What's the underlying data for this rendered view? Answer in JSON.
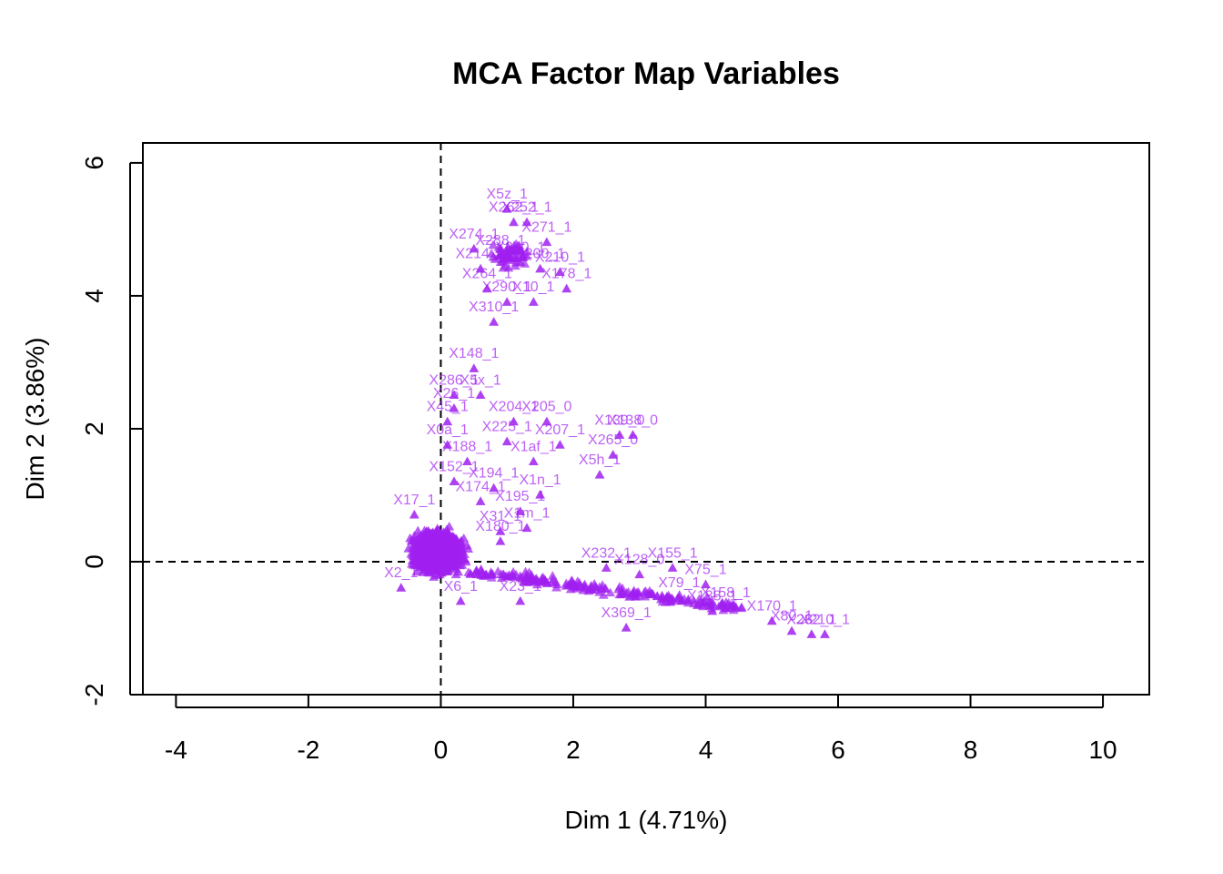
{
  "chart_data": {
    "type": "scatter",
    "title": "MCA Factor Map Variables",
    "xlabel": "Dim 1 (4.71%)",
    "ylabel": "Dim 2 (3.86%)",
    "xlim": [
      -4.5,
      10.7
    ],
    "ylim": [
      -2.0,
      6.3
    ],
    "xticks": [
      -4,
      -2,
      0,
      2,
      4,
      6,
      8,
      10
    ],
    "yticks": [
      -2,
      0,
      2,
      4,
      6
    ],
    "grid": false,
    "reference_lines": {
      "x": 0,
      "y": 0,
      "style": "dashed"
    },
    "marker": "triangle",
    "color": "#A020F0",
    "series": [
      {
        "points": [
          {
            "x": 1.0,
            "y": 5.3,
            "label": "X5z_1"
          },
          {
            "x": 1.3,
            "y": 5.1,
            "label": "X252_1"
          },
          {
            "x": 1.1,
            "y": 5.1,
            "label": "X262_1"
          },
          {
            "x": 0.5,
            "y": 4.7,
            "label": "X274_1"
          },
          {
            "x": 1.6,
            "y": 4.8,
            "label": "X271_1"
          },
          {
            "x": 0.9,
            "y": 4.6,
            "label": "X288_1"
          },
          {
            "x": 1.2,
            "y": 4.5,
            "label": "X240_1"
          },
          {
            "x": 1.5,
            "y": 4.4,
            "label": "X200_1"
          },
          {
            "x": 0.6,
            "y": 4.4,
            "label": "X214_1"
          },
          {
            "x": 1.8,
            "y": 4.35,
            "label": "X210_1"
          },
          {
            "x": 0.7,
            "y": 4.1,
            "label": "X264_1"
          },
          {
            "x": 1.9,
            "y": 4.1,
            "label": "X178_1"
          },
          {
            "x": 1.0,
            "y": 3.9,
            "label": "X290_1"
          },
          {
            "x": 1.4,
            "y": 3.9,
            "label": "X10_1"
          },
          {
            "x": 0.8,
            "y": 3.6,
            "label": "X310_1"
          },
          {
            "x": 0.5,
            "y": 2.9,
            "label": "X148_1"
          },
          {
            "x": 0.2,
            "y": 2.5,
            "label": "X286_1"
          },
          {
            "x": 0.6,
            "y": 2.5,
            "label": "X5x_1"
          },
          {
            "x": 0.2,
            "y": 2.3,
            "label": "X26_1"
          },
          {
            "x": 0.1,
            "y": 2.1,
            "label": "X45_1"
          },
          {
            "x": 1.1,
            "y": 2.1,
            "label": "X204_1"
          },
          {
            "x": 1.6,
            "y": 2.1,
            "label": "X205_0"
          },
          {
            "x": 2.7,
            "y": 1.9,
            "label": "X139_0"
          },
          {
            "x": 2.9,
            "y": 1.9,
            "label": "X138_0"
          },
          {
            "x": 0.1,
            "y": 1.75,
            "label": "X0a_1"
          },
          {
            "x": 1.0,
            "y": 1.8,
            "label": "X225_1"
          },
          {
            "x": 1.8,
            "y": 1.75,
            "label": "X207_1"
          },
          {
            "x": 2.6,
            "y": 1.6,
            "label": "X265_0"
          },
          {
            "x": 0.4,
            "y": 1.5,
            "label": "X188_1"
          },
          {
            "x": 1.4,
            "y": 1.5,
            "label": "X1af_1"
          },
          {
            "x": 2.4,
            "y": 1.3,
            "label": "X5h_1"
          },
          {
            "x": 0.2,
            "y": 1.2,
            "label": "X152_1"
          },
          {
            "x": 0.8,
            "y": 1.1,
            "label": "X194_1"
          },
          {
            "x": 1.5,
            "y": 1.0,
            "label": "X1n_1"
          },
          {
            "x": 0.6,
            "y": 0.9,
            "label": "X174_1"
          },
          {
            "x": 1.2,
            "y": 0.75,
            "label": "X195_1"
          },
          {
            "x": 1.3,
            "y": 0.5,
            "label": "X1m_1"
          },
          {
            "x": 0.9,
            "y": 0.3,
            "label": "X180_1"
          },
          {
            "x": 2.5,
            "y": -0.1,
            "label": "X232_1"
          },
          {
            "x": 3.5,
            "y": -0.1,
            "label": "X155_1"
          },
          {
            "x": 3.0,
            "y": -0.2,
            "label": "X128_0"
          },
          {
            "x": 4.0,
            "y": -0.35,
            "label": "X75_1"
          },
          {
            "x": 3.6,
            "y": -0.55,
            "label": "X79_1"
          },
          {
            "x": 4.3,
            "y": -0.7,
            "label": "X158_1"
          },
          {
            "x": 4.1,
            "y": -0.75,
            "label": "X138_1"
          },
          {
            "x": 5.0,
            "y": -0.9,
            "label": "X170_1"
          },
          {
            "x": 2.8,
            "y": -1.0,
            "label": "X369_1"
          },
          {
            "x": 5.3,
            "y": -1.05,
            "label": "X80_1"
          },
          {
            "x": 5.6,
            "y": -1.1,
            "label": "X282_1"
          },
          {
            "x": 5.8,
            "y": -1.1,
            "label": "X210_1"
          },
          {
            "x": -0.6,
            "y": -0.4,
            "label": "X2_1"
          },
          {
            "x": 0.3,
            "y": -0.6,
            "label": "X6_1"
          },
          {
            "x": 1.2,
            "y": -0.6,
            "label": "X23_1"
          },
          {
            "x": -0.4,
            "y": 0.7,
            "label": "X17_1"
          },
          {
            "x": 0.9,
            "y": 0.45,
            "label": "X31_1"
          }
        ]
      }
    ]
  }
}
